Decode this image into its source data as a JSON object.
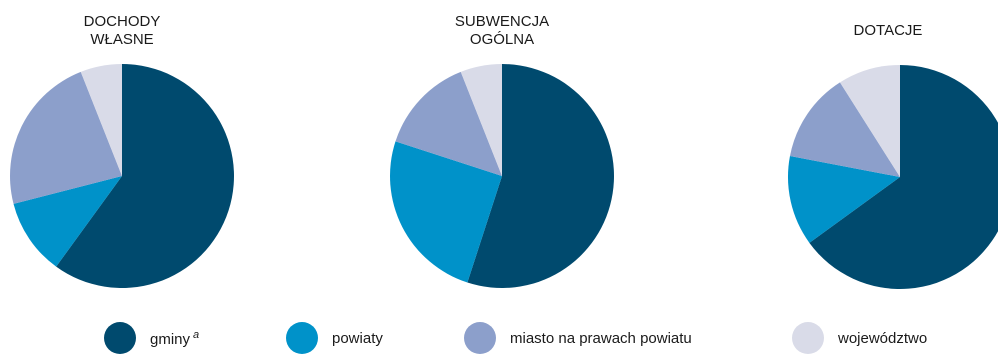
{
  "colors": {
    "gminy": "#004a6e",
    "powiaty": "#0092c9",
    "miasto": "#8c9fcb",
    "wojewodztwo": "#d9dbe8"
  },
  "legend": {
    "gminy": "gminy",
    "gminy_sup": "a",
    "powiaty": "powiaty",
    "miasto": "miasto na prawach powiatu",
    "wojewodztwo": "województwo"
  },
  "chart_data": [
    {
      "type": "pie",
      "title": "DOCHODY\nWŁASNE",
      "categories": [
        "gminy",
        "powiaty",
        "miasto na prawach powiatu",
        "województwo"
      ],
      "values": [
        60,
        11,
        23,
        6
      ]
    },
    {
      "type": "pie",
      "title": "SUBWENCJA\nOGÓLNA",
      "categories": [
        "gminy",
        "powiaty",
        "miasto na prawach powiatu",
        "województwo"
      ],
      "values": [
        55,
        25,
        14,
        6
      ]
    },
    {
      "type": "pie",
      "title": "DOTACJE",
      "categories": [
        "gminy",
        "powiaty",
        "miasto na prawach powiatu",
        "województwo"
      ],
      "values": [
        65,
        13,
        13,
        9
      ]
    }
  ]
}
